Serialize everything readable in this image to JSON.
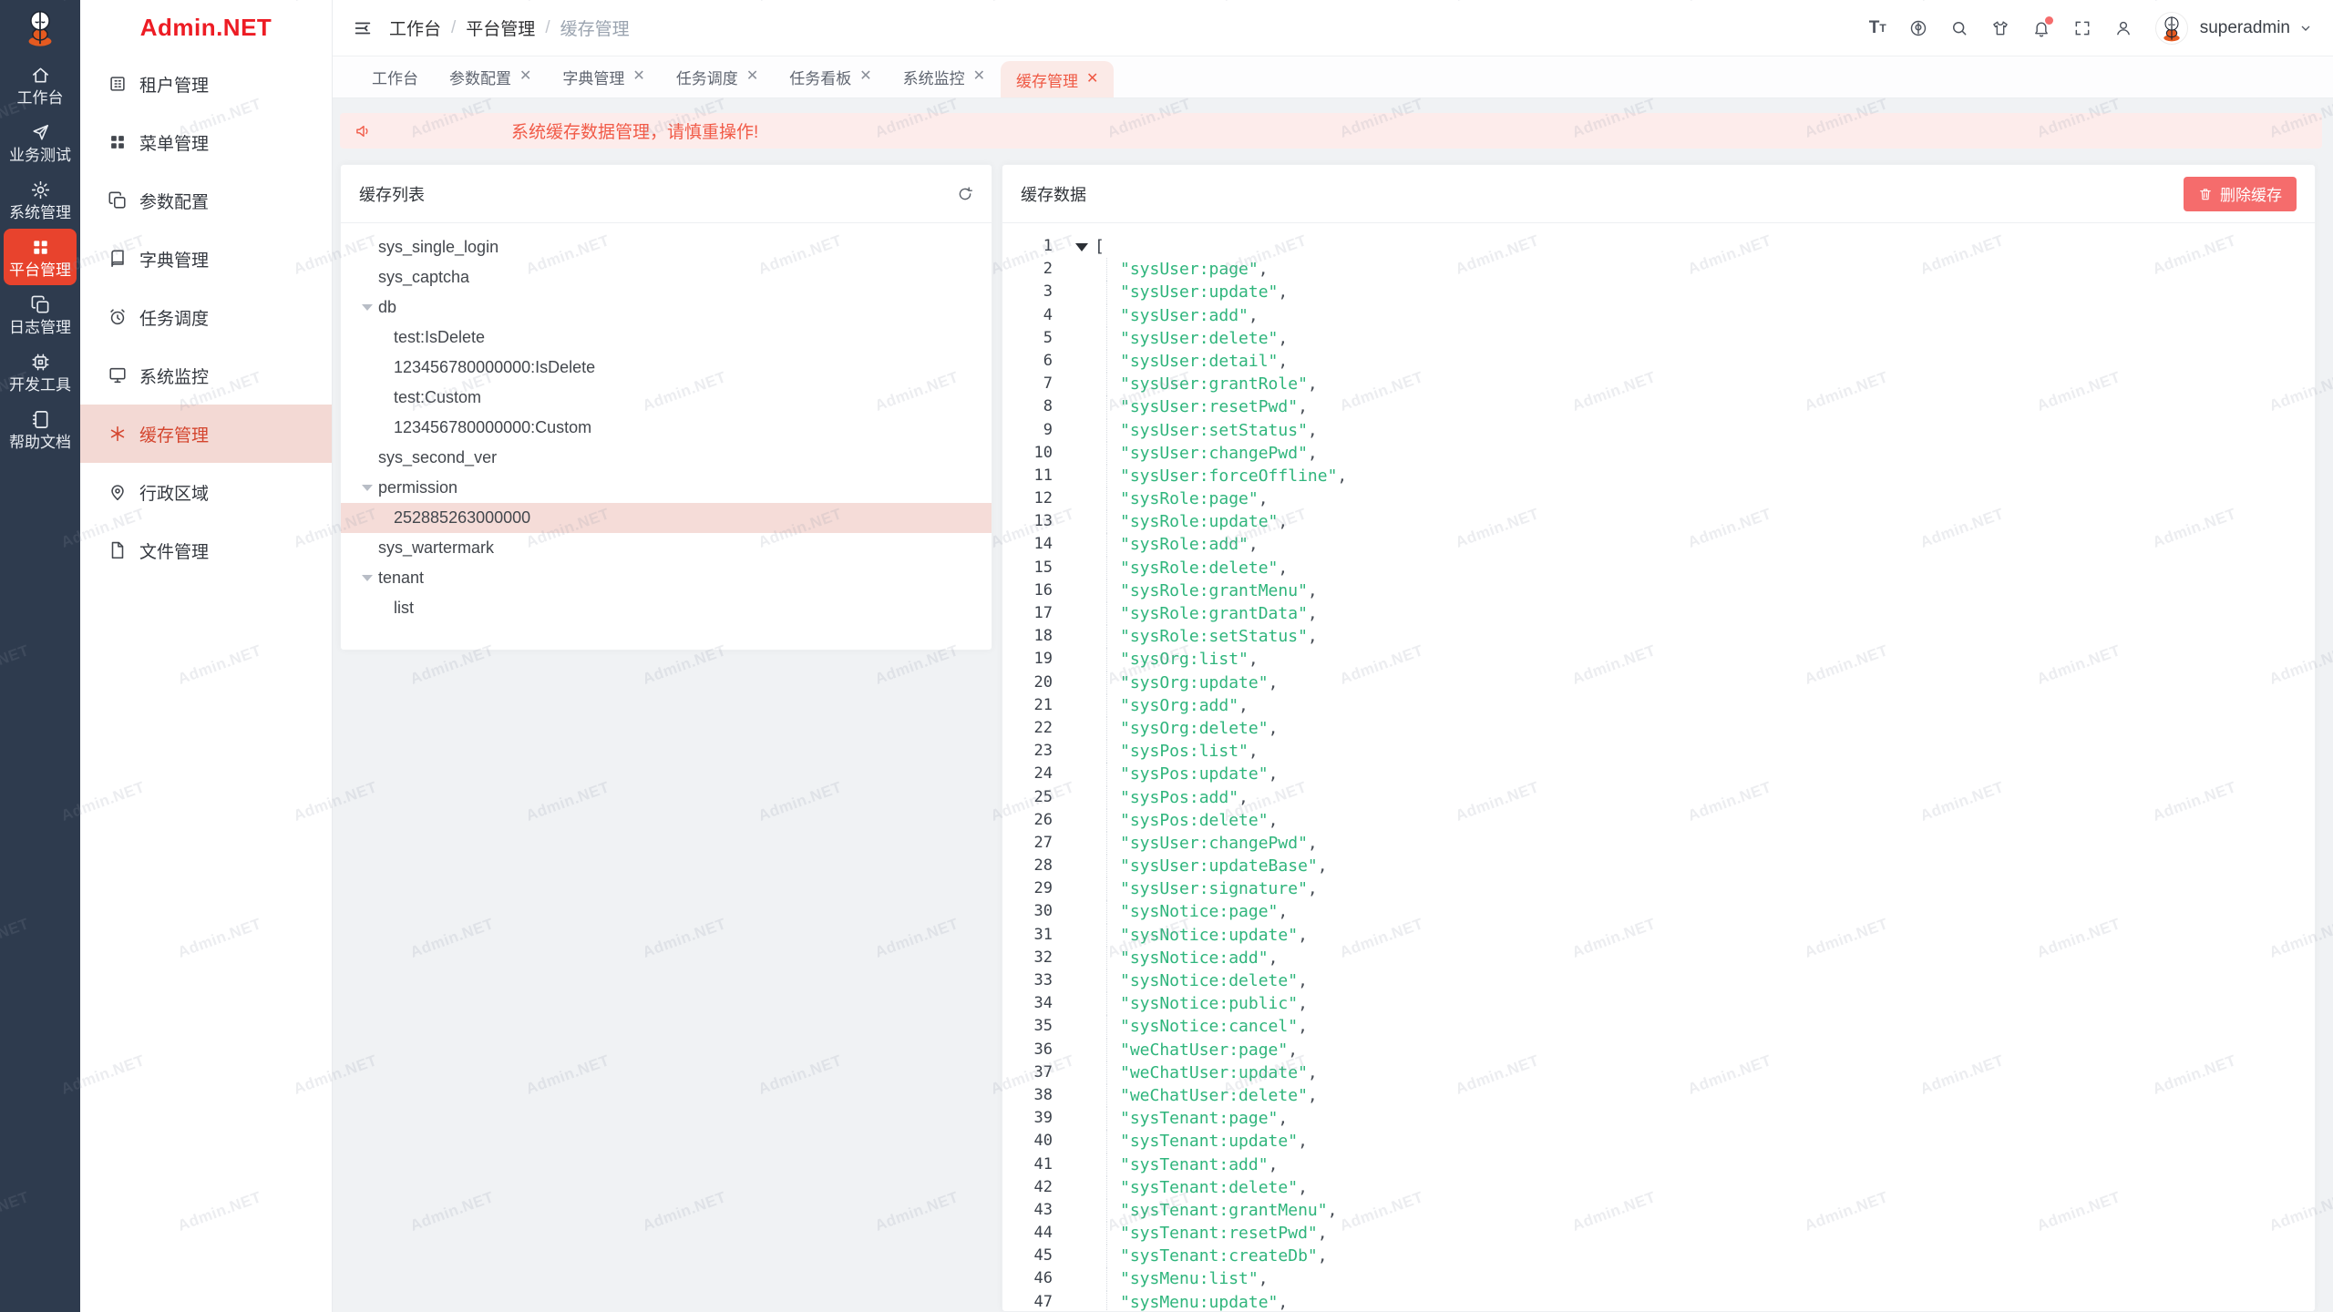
{
  "brand": {
    "name": "Admin.NET",
    "color": "#ed1c24"
  },
  "watermark": {
    "text": "Admin.NET"
  },
  "rail": {
    "items": [
      {
        "label": "工作台",
        "icon": "home-icon",
        "active": false
      },
      {
        "label": "业务测试",
        "icon": "send-icon",
        "active": false
      },
      {
        "label": "系统管理",
        "icon": "gear-icon",
        "active": false
      },
      {
        "label": "平台管理",
        "icon": "grid-icon",
        "active": true
      },
      {
        "label": "日志管理",
        "icon": "copy-docs-icon",
        "active": false
      },
      {
        "label": "开发工具",
        "icon": "cpu-icon",
        "active": false
      },
      {
        "label": "帮助文档",
        "icon": "notebook-icon",
        "active": false
      }
    ]
  },
  "sidebar": {
    "items": [
      {
        "label": "租户管理",
        "icon": "building-icon",
        "active": false
      },
      {
        "label": "菜单管理",
        "icon": "grid-icon",
        "active": false
      },
      {
        "label": "参数配置",
        "icon": "copy-docs-icon",
        "active": false
      },
      {
        "label": "字典管理",
        "icon": "book-icon",
        "active": false
      },
      {
        "label": "任务调度",
        "icon": "alarm-clock-icon",
        "active": false
      },
      {
        "label": "系统监控",
        "icon": "monitor-icon",
        "active": false
      },
      {
        "label": "缓存管理",
        "icon": "snowflake-icon",
        "active": true
      },
      {
        "label": "行政区域",
        "icon": "map-pin-icon",
        "active": false
      },
      {
        "label": "文件管理",
        "icon": "file-icon",
        "active": false
      }
    ]
  },
  "header": {
    "breadcrumb": [
      "工作台",
      "平台管理",
      "缓存管理"
    ],
    "separator": "/",
    "icons": [
      "font-size-icon",
      "language-icon",
      "search-icon",
      "theme-icon",
      "bell-icon",
      "fullscreen-icon",
      "user-icon"
    ],
    "notification_badge": true,
    "username": "superadmin"
  },
  "tabs": [
    {
      "label": "工作台",
      "closable": false,
      "active": false
    },
    {
      "label": "参数配置",
      "closable": true,
      "active": false
    },
    {
      "label": "字典管理",
      "closable": true,
      "active": false
    },
    {
      "label": "任务调度",
      "closable": true,
      "active": false
    },
    {
      "label": "任务看板",
      "closable": true,
      "active": false
    },
    {
      "label": "系统监控",
      "closable": true,
      "active": false
    },
    {
      "label": "缓存管理",
      "closable": true,
      "active": true
    }
  ],
  "alert": {
    "text": "系统缓存数据管理，请慎重操作!"
  },
  "cache_list": {
    "title": "缓存列表",
    "tree": [
      {
        "label": "sys_single_login",
        "level": 1,
        "expanded": false,
        "selected": false
      },
      {
        "label": "sys_captcha",
        "level": 1,
        "expanded": false,
        "selected": false
      },
      {
        "label": "db",
        "level": 1,
        "expanded": true,
        "selected": false
      },
      {
        "label": "test:IsDelete",
        "level": 2,
        "expanded": false,
        "selected": false
      },
      {
        "label": "123456780000000:IsDelete",
        "level": 2,
        "expanded": false,
        "selected": false
      },
      {
        "label": "test:Custom",
        "level": 2,
        "expanded": false,
        "selected": false
      },
      {
        "label": "123456780000000:Custom",
        "level": 2,
        "expanded": false,
        "selected": false
      },
      {
        "label": "sys_second_ver",
        "level": 1,
        "expanded": false,
        "selected": false
      },
      {
        "label": "permission",
        "level": 1,
        "expanded": true,
        "selected": false
      },
      {
        "label": "252885263000000",
        "level": 2,
        "expanded": false,
        "selected": true
      },
      {
        "label": "sys_wartermark",
        "level": 1,
        "expanded": false,
        "selected": false
      },
      {
        "label": "tenant",
        "level": 1,
        "expanded": true,
        "selected": false
      },
      {
        "label": "list",
        "level": 2,
        "expanded": false,
        "selected": false
      }
    ]
  },
  "cache_data": {
    "title": "缓存数据",
    "delete_button": "删除缓存",
    "open_bracket": "[",
    "values": [
      "sysUser:page",
      "sysUser:update",
      "sysUser:add",
      "sysUser:delete",
      "sysUser:detail",
      "sysUser:grantRole",
      "sysUser:resetPwd",
      "sysUser:setStatus",
      "sysUser:changePwd",
      "sysUser:forceOffline",
      "sysRole:page",
      "sysRole:update",
      "sysRole:add",
      "sysRole:delete",
      "sysRole:grantMenu",
      "sysRole:grantData",
      "sysRole:setStatus",
      "sysOrg:list",
      "sysOrg:update",
      "sysOrg:add",
      "sysOrg:delete",
      "sysPos:list",
      "sysPos:update",
      "sysPos:add",
      "sysPos:delete",
      "sysUser:changePwd",
      "sysUser:updateBase",
      "sysUser:signature",
      "sysNotice:page",
      "sysNotice:update",
      "sysNotice:add",
      "sysNotice:delete",
      "sysNotice:public",
      "sysNotice:cancel",
      "weChatUser:page",
      "weChatUser:update",
      "weChatUser:delete",
      "sysTenant:page",
      "sysTenant:update",
      "sysTenant:add",
      "sysTenant:delete",
      "sysTenant:grantMenu",
      "sysTenant:resetPwd",
      "sysTenant:createDb",
      "sysMenu:list",
      "sysMenu:update"
    ]
  },
  "colors": {
    "accent_red": "#e8432d",
    "danger": "#f56c6c",
    "string_green": "#2fb57c",
    "rail_bg": "#2e3b4e",
    "selected_bg": "#f5dcd8",
    "tab_active_bg": "#fbeae7",
    "alert_bg": "#fdeceb"
  }
}
